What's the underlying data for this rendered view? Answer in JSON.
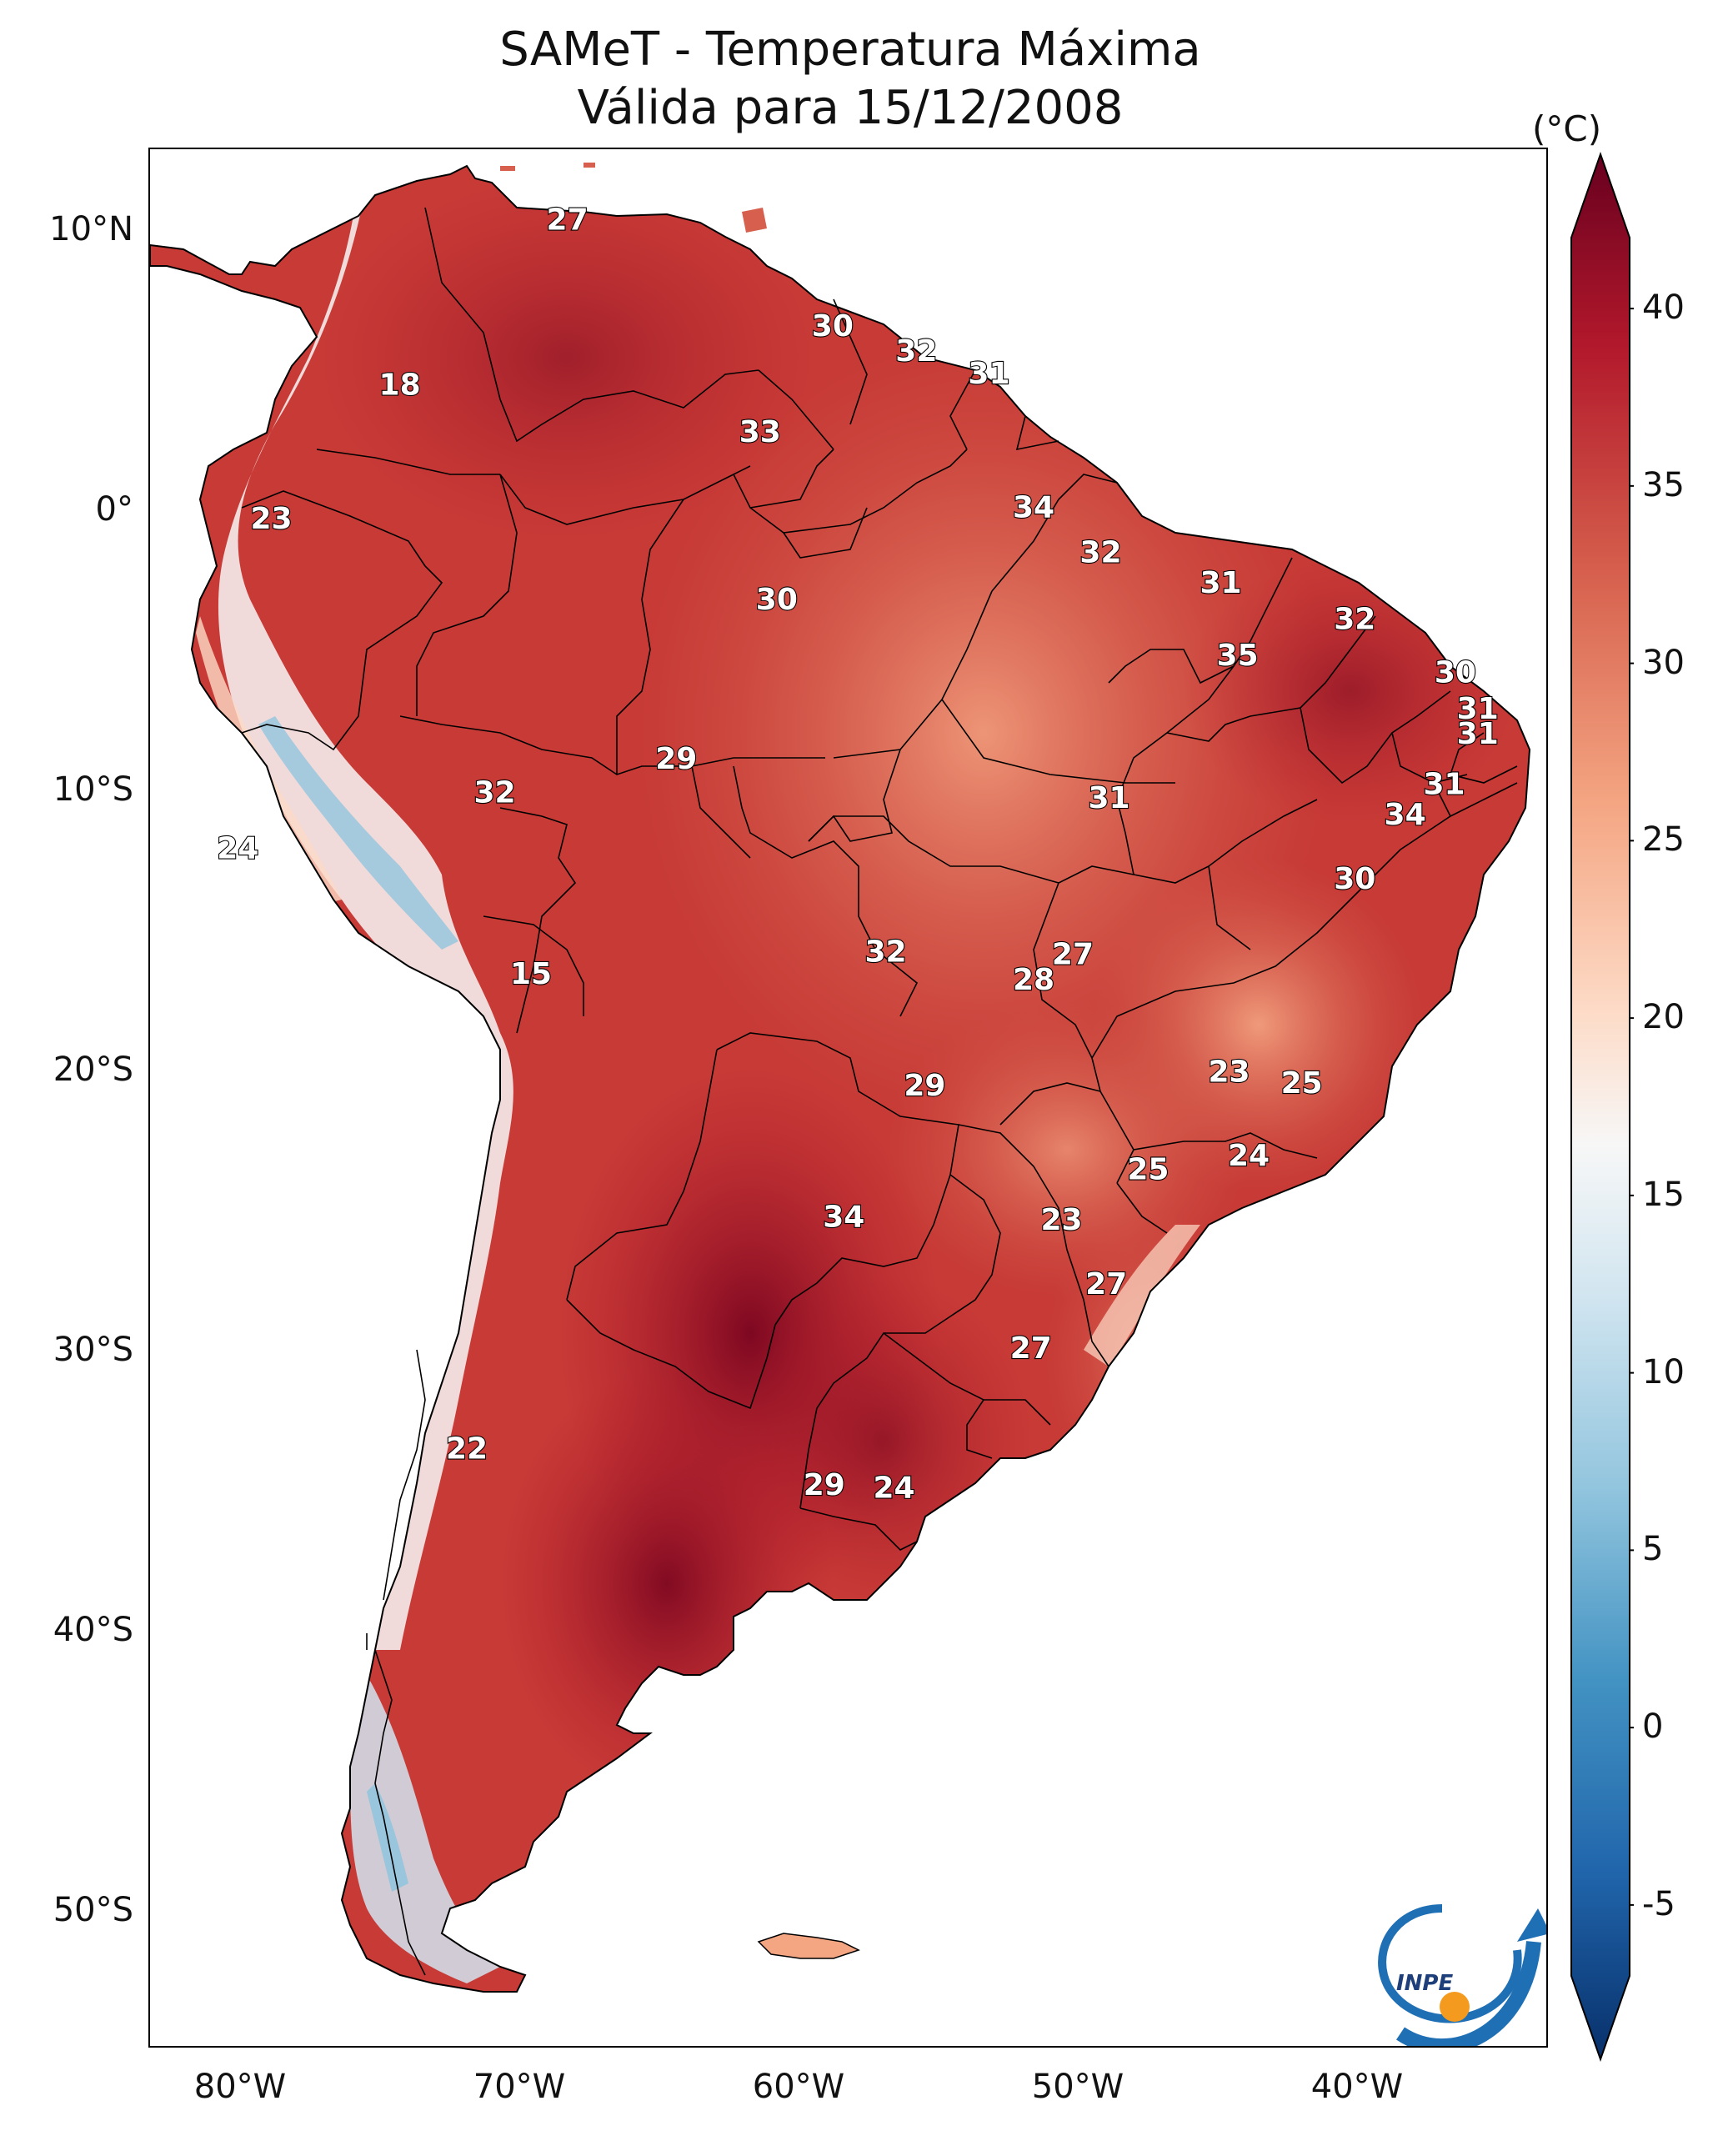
{
  "title": {
    "line1": "SAMeT - Temperatura Máxima",
    "line2": "Válida para 15/12/2008"
  },
  "map": {
    "latitude_labels": [
      "10°N",
      "0°",
      "10°S",
      "20°S",
      "30°S",
      "40°S",
      "50°S"
    ],
    "longitude_labels": [
      "80°W",
      "70°W",
      "60°W",
      "50°W",
      "40°W"
    ],
    "extent": {
      "lon_min": -83,
      "lon_max": -33,
      "lat_min": -56.5,
      "lat_max": 13
    },
    "isotherm_labels": [
      {
        "text": "27",
        "lon": -67.4,
        "lat": 10.4
      },
      {
        "text": "30",
        "lon": -57.9,
        "lat": 6.6
      },
      {
        "text": "32",
        "lon": -54.9,
        "lat": 5.7
      },
      {
        "text": "31",
        "lon": -52.3,
        "lat": 4.9
      },
      {
        "text": "18",
        "lon": -73.4,
        "lat": 4.5
      },
      {
        "text": "33",
        "lon": -60.5,
        "lat": 2.8
      },
      {
        "text": "34",
        "lon": -50.7,
        "lat": 0.1
      },
      {
        "text": "23",
        "lon": -78.0,
        "lat": -0.3
      },
      {
        "text": "32",
        "lon": -48.3,
        "lat": -1.5
      },
      {
        "text": "31",
        "lon": -44.0,
        "lat": -2.6
      },
      {
        "text": "30",
        "lon": -59.9,
        "lat": -3.2
      },
      {
        "text": "32",
        "lon": -39.2,
        "lat": -3.9
      },
      {
        "text": "35",
        "lon": -43.4,
        "lat": -5.2
      },
      {
        "text": "30",
        "lon": -35.6,
        "lat": -5.8
      },
      {
        "text": "31",
        "lon": -34.8,
        "lat": -7.1
      },
      {
        "text": "31",
        "lon": -34.8,
        "lat": -8.0
      },
      {
        "text": "29",
        "lon": -63.5,
        "lat": -8.9
      },
      {
        "text": "31",
        "lon": -36.0,
        "lat": -9.8
      },
      {
        "text": "32",
        "lon": -70.0,
        "lat": -10.1
      },
      {
        "text": "31",
        "lon": -48.0,
        "lat": -10.3
      },
      {
        "text": "34",
        "lon": -37.4,
        "lat": -10.9
      },
      {
        "text": "24",
        "lon": -79.2,
        "lat": -12.1
      },
      {
        "text": "30",
        "lon": -39.2,
        "lat": -13.2
      },
      {
        "text": "32",
        "lon": -56.0,
        "lat": -15.8
      },
      {
        "text": "27",
        "lon": -49.3,
        "lat": -15.9
      },
      {
        "text": "28",
        "lon": -50.7,
        "lat": -16.8
      },
      {
        "text": "15",
        "lon": -68.7,
        "lat": -16.6
      },
      {
        "text": "23",
        "lon": -43.7,
        "lat": -20.1
      },
      {
        "text": "25",
        "lon": -41.1,
        "lat": -20.5
      },
      {
        "text": "29",
        "lon": -54.6,
        "lat": -20.6
      },
      {
        "text": "24",
        "lon": -43.0,
        "lat": -23.1
      },
      {
        "text": "25",
        "lon": -46.6,
        "lat": -23.6
      },
      {
        "text": "34",
        "lon": -57.5,
        "lat": -25.3
      },
      {
        "text": "23",
        "lon": -49.7,
        "lat": -25.4
      },
      {
        "text": "27",
        "lon": -48.1,
        "lat": -27.7
      },
      {
        "text": "27",
        "lon": -50.8,
        "lat": -30.0
      },
      {
        "text": "22",
        "lon": -71.0,
        "lat": -33.6
      },
      {
        "text": "29",
        "lon": -58.2,
        "lat": -34.9
      },
      {
        "text": "24",
        "lon": -55.7,
        "lat": -35.0
      }
    ]
  },
  "colorbar": {
    "unit": "(°C)",
    "ticks": [
      "40",
      "35",
      "30",
      "25",
      "20",
      "15",
      "10",
      "5",
      "0",
      "-5"
    ],
    "min": -7,
    "max": 42,
    "tick_min": -5,
    "tick_max": 40,
    "stops": [
      "#08306b",
      "#2166ac",
      "#4393c3",
      "#92c5de",
      "#d1e5f0",
      "#f7f7f7",
      "#fddbc7",
      "#f4a582",
      "#d6604d",
      "#b2182b",
      "#67001f"
    ]
  },
  "logo": {
    "text": "INPE"
  },
  "colors": {
    "land_hot": "#b2182b",
    "land_warm": "#d6604d",
    "land_mild": "#f4a582",
    "land_cool": "#fddbc7",
    "andes_cold": "#d1e5f0",
    "andes_colder": "#92c5de",
    "very_hot": "#8e0a22",
    "border": "#000000",
    "logo_blue": "#1f6fb5",
    "logo_orange": "#f39a1f"
  }
}
